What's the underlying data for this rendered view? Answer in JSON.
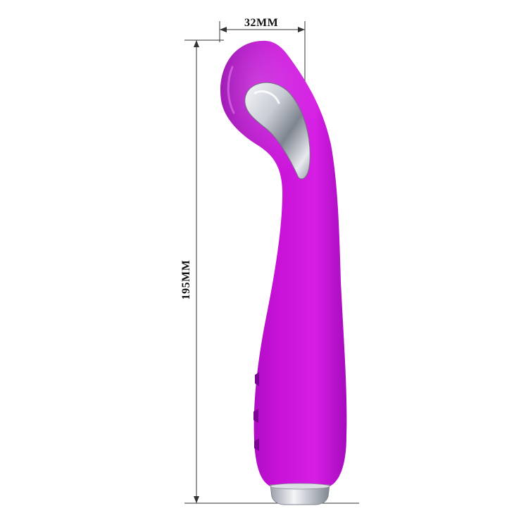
{
  "dimensions": {
    "width_label": "32MM",
    "height_label": "195MM"
  },
  "product": {
    "body_color": "#c812d8",
    "shadow_color": "#8c06a4",
    "highlight_color": "#e266ef",
    "chrome_color": "#c8ccd4"
  }
}
